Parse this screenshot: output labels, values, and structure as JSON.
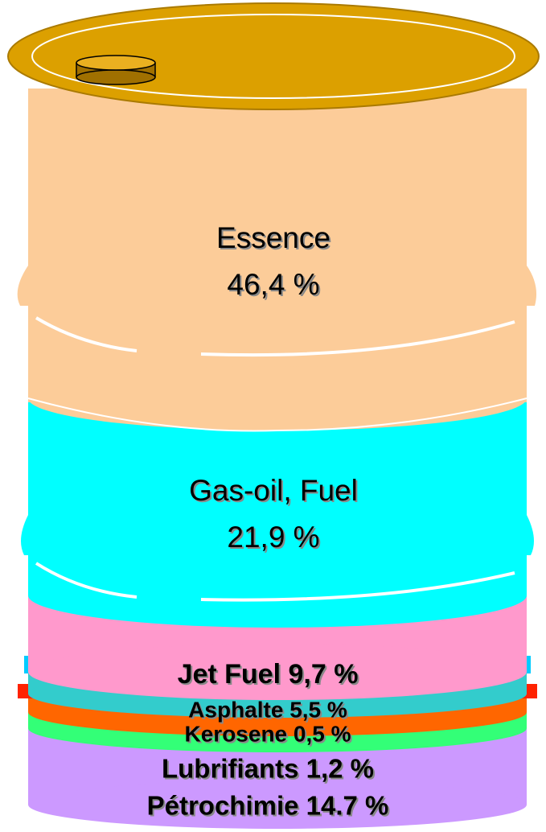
{
  "segments": [
    {
      "lines": [
        "Essence",
        "46,4 %"
      ]
    },
    {
      "lines": [
        "Gas-oil, Fuel",
        "21,9 %"
      ]
    },
    {
      "lines": [
        "Jet Fuel 9,7 %"
      ]
    },
    {
      "lines": [
        "Asphalte  5,5 %"
      ]
    },
    {
      "lines": [
        "Kerosene  0,5 %"
      ]
    },
    {
      "lines": [
        "Lubrifiants 1,2 %"
      ]
    },
    {
      "lines": [
        "Pétrochimie 14.7 %"
      ]
    }
  ]
}
